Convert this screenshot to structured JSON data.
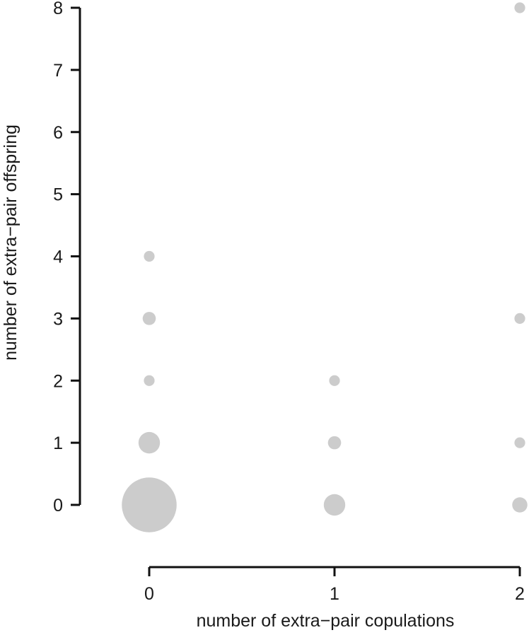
{
  "chart_data": {
    "type": "scatter",
    "title": "",
    "xlabel": "number of extra−pair copulations",
    "ylabel": "number of extra−pair offspring",
    "xlim": [
      0,
      2
    ],
    "ylim": [
      0,
      8
    ],
    "x_ticks": [
      "0",
      "1",
      "2"
    ],
    "y_ticks": [
      "0",
      "1",
      "2",
      "3",
      "4",
      "5",
      "6",
      "7",
      "8"
    ],
    "grid": false,
    "legend": "none",
    "point_color": "#cccccc",
    "size_encoding": "relative frequency (bubble area)",
    "points": [
      {
        "x": 0,
        "y": 0,
        "size": 26
      },
      {
        "x": 0,
        "y": 1,
        "size": 4
      },
      {
        "x": 0,
        "y": 2,
        "size": 1
      },
      {
        "x": 0,
        "y": 3,
        "size": 1.5
      },
      {
        "x": 0,
        "y": 4,
        "size": 1
      },
      {
        "x": 1,
        "y": 0,
        "size": 4
      },
      {
        "x": 1,
        "y": 1,
        "size": 1.5
      },
      {
        "x": 1,
        "y": 2,
        "size": 1
      },
      {
        "x": 2,
        "y": 0,
        "size": 2
      },
      {
        "x": 2,
        "y": 1,
        "size": 1
      },
      {
        "x": 2,
        "y": 3,
        "size": 1
      },
      {
        "x": 2,
        "y": 8,
        "size": 1
      }
    ]
  }
}
